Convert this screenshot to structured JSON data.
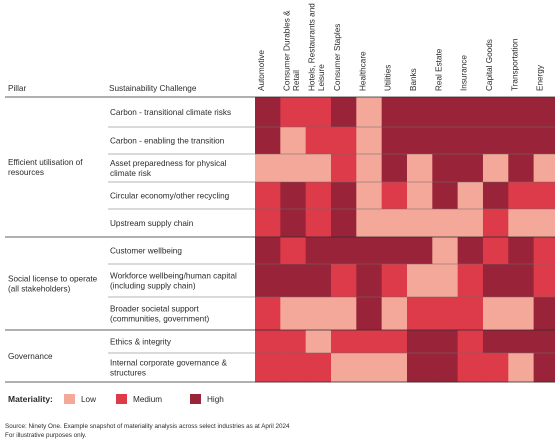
{
  "chart_data": {
    "type": "heatmap",
    "header_pillar": "Pillar",
    "header_challenge": "Sustainability Challenge",
    "industries": [
      [
        "Automotive"
      ],
      [
        "Consumer Durables &",
        "Retail"
      ],
      [
        "Hotels, Restaurants and",
        "Leisure"
      ],
      [
        "Consumer Staples"
      ],
      [
        "Healthcare"
      ],
      [
        "Utilities"
      ],
      [
        "Banks"
      ],
      [
        "Real Estate"
      ],
      [
        "Insurance"
      ],
      [
        "Capital Goods"
      ],
      [
        "Transportation"
      ],
      [
        "Energy"
      ]
    ],
    "pillars": [
      {
        "label": [
          "Efficient utilisation of",
          "resources"
        ],
        "first_row": 0,
        "last_row": 4
      },
      {
        "label": [
          "Social license to operate",
          "(all stakeholders)"
        ],
        "first_row": 5,
        "last_row": 7
      },
      {
        "label": [
          "Governance"
        ],
        "first_row": 8,
        "last_row": 9
      }
    ],
    "challenges": [
      [
        "Carbon - transitional climate risks"
      ],
      [
        "Carbon - enabling the transition"
      ],
      [
        "Asset preparedness for physical",
        "climate risk"
      ],
      [
        "Circular economy/other recycling"
      ],
      [
        "Upstream supply chain"
      ],
      [
        "Customer wellbeing"
      ],
      [
        "Workforce wellbeing/human capital",
        "(including supply chain)"
      ],
      [
        "Broader societal support",
        "(communities, government)"
      ],
      [
        "Ethics & integrity"
      ],
      [
        "Internal corporate governance &",
        "structures"
      ]
    ],
    "values": [
      [
        3,
        2,
        2,
        3,
        1,
        3,
        3,
        3,
        3,
        3,
        3,
        3
      ],
      [
        3,
        1,
        2,
        2,
        1,
        3,
        3,
        3,
        3,
        3,
        3,
        3
      ],
      [
        1,
        1,
        1,
        2,
        1,
        3,
        1,
        3,
        3,
        1,
        3,
        1
      ],
      [
        2,
        3,
        2,
        3,
        1,
        2,
        1,
        3,
        1,
        3,
        2,
        2
      ],
      [
        2,
        3,
        2,
        3,
        1,
        1,
        1,
        1,
        1,
        2,
        1,
        1
      ],
      [
        3,
        2,
        3,
        3,
        3,
        3,
        3,
        1,
        3,
        2,
        3,
        2
      ],
      [
        3,
        3,
        3,
        2,
        3,
        2,
        1,
        1,
        2,
        3,
        3,
        2
      ],
      [
        2,
        1,
        1,
        1,
        3,
        1,
        2,
        2,
        2,
        1,
        1,
        3
      ],
      [
        2,
        2,
        1,
        2,
        2,
        2,
        3,
        3,
        2,
        3,
        3,
        3
      ],
      [
        2,
        2,
        2,
        1,
        1,
        1,
        3,
        3,
        2,
        2,
        1,
        3
      ]
    ],
    "levels": {
      "1": "Low",
      "2": "Medium",
      "3": "High"
    },
    "colors": {
      "1": "#f4a899",
      "2": "#dd3a4a",
      "3": "#99243a"
    },
    "legend_title": "Materiality:",
    "legend": [
      "Low",
      "Medium",
      "High"
    ],
    "legend_colors": [
      "#f4a899",
      "#dd3a4a",
      "#99243a"
    ],
    "source": [
      "Source: Ninety One. Example snapshot of materiality analysis across select industries as at April 2024",
      "For illustrative purposes only."
    ]
  }
}
